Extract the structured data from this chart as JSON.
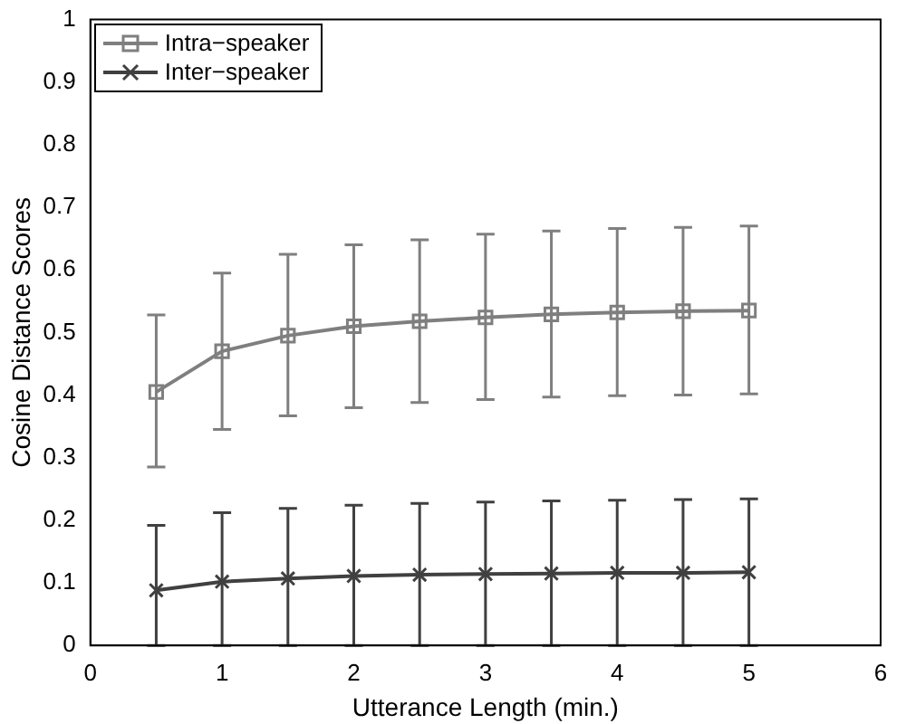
{
  "chart_data": {
    "type": "line",
    "xlabel": "Utterance Length (min.)",
    "ylabel": "Cosine Distance Scores",
    "x": [
      0.5,
      1,
      1.5,
      2,
      2.5,
      3,
      3.5,
      4,
      4.5,
      5
    ],
    "series": [
      {
        "name": "Intra−speaker",
        "color": "#7f7f7f",
        "marker": "square",
        "values": [
          0.405,
          0.47,
          0.495,
          0.51,
          0.518,
          0.524,
          0.529,
          0.532,
          0.534,
          0.535
        ],
        "errors": [
          [
            0.285,
            0.528
          ],
          [
            0.345,
            0.595
          ],
          [
            0.367,
            0.625
          ],
          [
            0.38,
            0.64
          ],
          [
            0.388,
            0.648
          ],
          [
            0.393,
            0.657
          ],
          [
            0.397,
            0.662
          ],
          [
            0.399,
            0.666
          ],
          [
            0.4,
            0.668
          ],
          [
            0.402,
            0.67
          ]
        ]
      },
      {
        "name": "Inter−speaker",
        "color": "#404040",
        "marker": "cross",
        "values": [
          0.088,
          0.102,
          0.107,
          0.111,
          0.113,
          0.114,
          0.115,
          0.116,
          0.116,
          0.117
        ],
        "errors": [
          [
            0,
            0.192
          ],
          [
            0,
            0.212
          ],
          [
            0,
            0.219
          ],
          [
            0,
            0.224
          ],
          [
            0,
            0.227
          ],
          [
            0,
            0.229
          ],
          [
            0,
            0.231
          ],
          [
            0,
            0.232
          ],
          [
            0,
            0.233
          ],
          [
            0,
            0.234
          ]
        ]
      }
    ],
    "xlim": [
      0,
      6
    ],
    "xticks": [
      0,
      1,
      2,
      3,
      4,
      5,
      6
    ],
    "ylim": [
      0,
      1
    ],
    "yticks": [
      0,
      0.1,
      0.2,
      0.3,
      0.4,
      0.5,
      0.6,
      0.7,
      0.8,
      0.9,
      1
    ],
    "grid": false,
    "legend": "top left",
    "line_style": "solid"
  }
}
